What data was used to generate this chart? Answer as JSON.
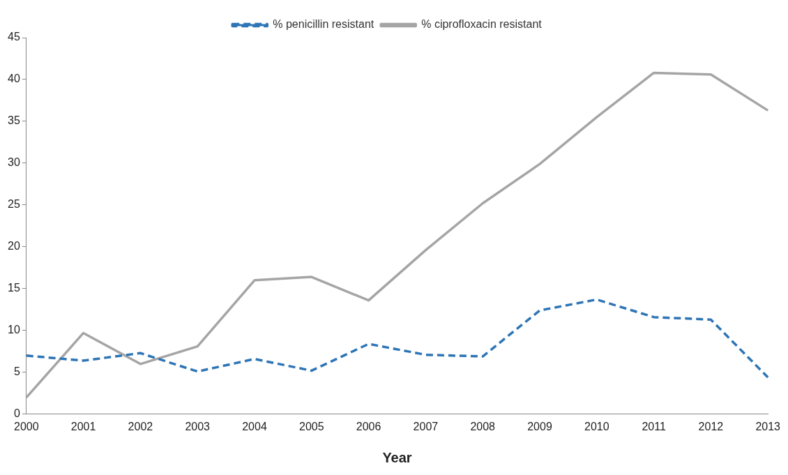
{
  "chart_data": {
    "type": "line",
    "xlabel": "Year",
    "categories": [
      "2000",
      "2001",
      "2002",
      "2003",
      "2004",
      "2005",
      "2006",
      "2007",
      "2008",
      "2009",
      "2010",
      "2011",
      "2012",
      "2013"
    ],
    "series": [
      {
        "name": "% penicillin resistant",
        "color": "#2e75b6",
        "line_style": "dashed",
        "values": [
          7.0,
          6.4,
          7.3,
          5.1,
          6.6,
          5.2,
          8.4,
          7.1,
          6.9,
          12.4,
          13.7,
          11.6,
          11.3,
          4.4
        ]
      },
      {
        "name": "% ciprofloxacin resistant",
        "color": "#a5a5a5",
        "line_style": "solid",
        "values": [
          2.0,
          9.7,
          6.0,
          8.1,
          16.0,
          16.4,
          13.6,
          19.6,
          25.2,
          29.9,
          35.5,
          40.8,
          40.6,
          36.3
        ]
      }
    ],
    "ylim": [
      0,
      45
    ],
    "yticks": [
      0,
      5,
      10,
      15,
      20,
      25,
      30,
      35,
      40,
      45
    ],
    "grid": false,
    "legend": "top",
    "marker": "none"
  }
}
